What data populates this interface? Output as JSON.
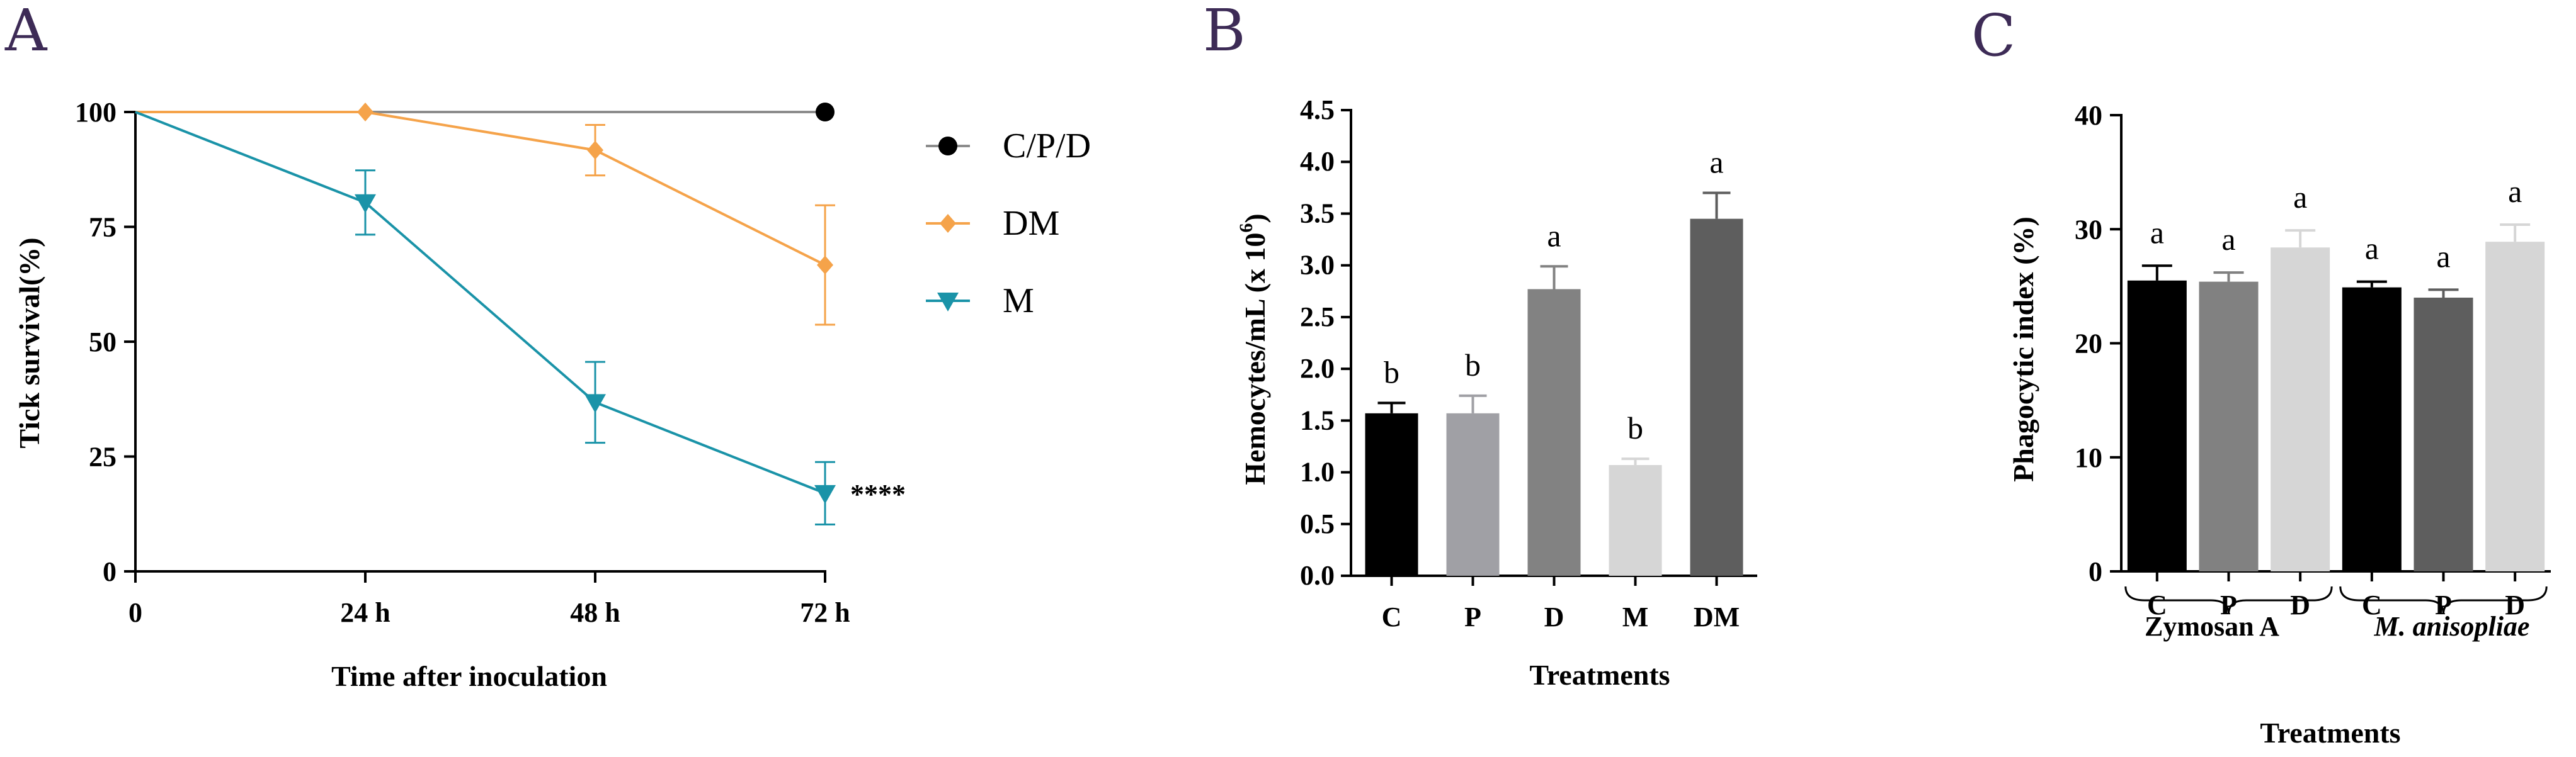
{
  "chart_data": [
    {
      "panel": "A",
      "type": "line",
      "ylabel": "Tick survival(%)",
      "xlabel": "Time after inoculation",
      "categories": [
        "0",
        "24 h",
        "48 h",
        "72 h"
      ],
      "ylim": [
        0,
        100
      ],
      "yticks": [
        "0",
        "25",
        "50",
        "75",
        "100"
      ],
      "legend": {
        "placement": "right"
      },
      "significance": "****",
      "series": [
        {
          "name": "C/P/D",
          "color": "#000000",
          "marker": "circle",
          "line_color": "#8c8c8c",
          "values": [
            100,
            100,
            100,
            100
          ],
          "errors": [
            0,
            0,
            0,
            0
          ],
          "marker_from": 3
        },
        {
          "name": "DM",
          "color": "#f5a34a",
          "marker": "diamond",
          "line_color": "#f5a34a",
          "values": [
            100,
            100,
            91.7,
            66.7
          ],
          "errors": [
            0,
            0,
            5.5,
            13
          ],
          "marker_from": 1
        },
        {
          "name": "M",
          "color": "#1a93a8",
          "marker": "triangle-down",
          "line_color": "#1a93a8",
          "values": [
            100,
            80.3,
            36.8,
            17
          ],
          "errors": [
            0,
            7,
            8.8,
            6.8
          ],
          "marker_from": 1
        }
      ]
    },
    {
      "panel": "B",
      "type": "bar",
      "ylabel_main": "Hemocytes/mL (x 10",
      "ylabel_exp": "6",
      "ylabel_close": ")",
      "xlabel": "Treatments",
      "categories": [
        "C",
        "P",
        "D",
        "M",
        "DM"
      ],
      "values": [
        1.57,
        1.57,
        2.77,
        1.07,
        3.45
      ],
      "errors": [
        0.1,
        0.17,
        0.22,
        0.06,
        0.25
      ],
      "letters": [
        "b",
        "b",
        "a",
        "b",
        "a"
      ],
      "colors": [
        "#000000",
        "#a0a0a5",
        "#828282",
        "#d6d6d6",
        "#5e5e5e"
      ],
      "ylim": [
        0,
        4.5
      ],
      "yticks": [
        "0.0",
        "0.5",
        "1.0",
        "1.5",
        "2.0",
        "2.5",
        "3.0",
        "3.5",
        "4.0",
        "4.5"
      ]
    },
    {
      "panel": "C",
      "type": "bar",
      "ylabel": "Phagocytic index (%)",
      "xlabel": "Treatments",
      "categories": [
        "C",
        "P",
        "D",
        "C",
        "P",
        "D"
      ],
      "groups": [
        {
          "label": "Zymosan A",
          "italic": false
        },
        {
          "label": "M. anisopliae",
          "italic": true
        }
      ],
      "values": [
        25.5,
        25.4,
        28.4,
        24.9,
        24.0,
        28.9
      ],
      "errors": [
        1.3,
        0.8,
        1.5,
        0.5,
        0.7,
        1.5
      ],
      "letters": [
        "a",
        "a",
        "a",
        "a",
        "a",
        "a"
      ],
      "colors": [
        "#000000",
        "#818181",
        "#d6d6d6",
        "#000000",
        "#5e5e5e",
        "#d6d6d6"
      ],
      "ylim": [
        0,
        40
      ],
      "yticks": [
        "0",
        "10",
        "20",
        "30",
        "40"
      ]
    }
  ]
}
